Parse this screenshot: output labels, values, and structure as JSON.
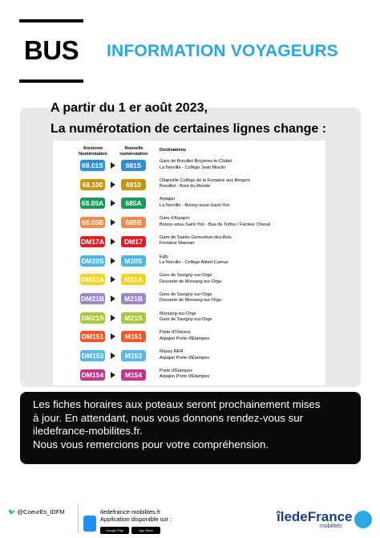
{
  "header": {
    "mode_label": "BUS",
    "title": "INFORMATION VOYAGEURS"
  },
  "intro": {
    "line1": "A partir du 1 er août 2023,",
    "line2": "La numérotation de certaines lignes change :"
  },
  "table": {
    "col_old": "Ancienne Numérotation",
    "col_new": "Nouvelle numérotation",
    "col_dest": "Destinations",
    "rows": [
      {
        "old": "68.01S",
        "new": "681S",
        "color": "#2e8fd6",
        "dest1": "Gare de Breuillet Bruyères-le-Châtel",
        "dest2": "La Norville - Collège Jean Moulin"
      },
      {
        "old": "68.100",
        "new": "6810",
        "color": "#c8950e",
        "dest1": "Ollainville Collège de la Fontaine aux Bergers",
        "dest2": "Breuillet - Bout du Monde"
      },
      {
        "old": "68.05A",
        "new": "685A",
        "color": "#1a9b57",
        "dest1": "Arpajon",
        "dest2": "La Norville - Boissy-sous-Saint-Yon"
      },
      {
        "old": "68.05B",
        "new": "685B",
        "color": "#f08a4b",
        "dest1": "Gare d'Arpajon",
        "dest2": "Boissy-sous-Saint-Yon - Bas de Torfou / Facteur Cheval"
      },
      {
        "old": "DM17A",
        "new": "DM17",
        "color": "#e01f26",
        "dest1": "Gare de Sainte-Geneviève-des-Bois",
        "dest2": "Fontaine Mansart"
      },
      {
        "old": "DM20S",
        "new": "M20S",
        "color": "#48b8e8",
        "dest1": "Egly",
        "dest2": "La Norville - Collège Albert Camus"
      },
      {
        "old": "DM21A",
        "new": "M21A",
        "color": "#f2d421",
        "dest1": "Gare de Savigny-sur-Orge",
        "dest2": "Desserte de Morsang-sur-Orge"
      },
      {
        "old": "DM21B",
        "new": "M21B",
        "color": "#9b88c8",
        "dest1": "Gare de Savigny-sur-Orge",
        "dest2": "Desserte de Morsang-sur-Orge"
      },
      {
        "old": "DM21S",
        "new": "M21S",
        "color": "#a9c73b",
        "dest1": "Morsang-sur-Orge",
        "dest2": "Gare de Savigny-sur-Orge"
      },
      {
        "old": "DM151",
        "new": "M151",
        "color": "#f05a2a",
        "dest1": "Porte d'Orléans",
        "dest2": "Arpajon Porte d'Étampes"
      },
      {
        "old": "DM153",
        "new": "M153",
        "color": "#5ab8e6",
        "dest1": "Massy RER",
        "dest2": "Arpajon Porte d'Étampes"
      },
      {
        "old": "DM154",
        "new": "M154",
        "color": "#c2378a",
        "dest1": "Porte d'Étampes",
        "dest2": "Arpajon Porte d'Étampes"
      }
    ]
  },
  "message": {
    "line1": "Les fiches horaires aux poteaux seront prochainement mises",
    "line2": "à jour. En attendant, nous vous donnons rendez-vous sur",
    "line3": "iledefrance-mobilites.fr.",
    "line4": "Nous vous remercions pour votre compréhension."
  },
  "footer": {
    "twitter": "@CoeurEs_IDFM",
    "site": "iledefrance-mobilites.fr",
    "app_text": "Application disponible sur :",
    "store1": "Google Play",
    "store2": "App Store",
    "logo_main": "îledeFrance",
    "logo_sub": "mobilités",
    "icon_twitter": "twitter-icon",
    "icon_phone": "phone-icon"
  }
}
